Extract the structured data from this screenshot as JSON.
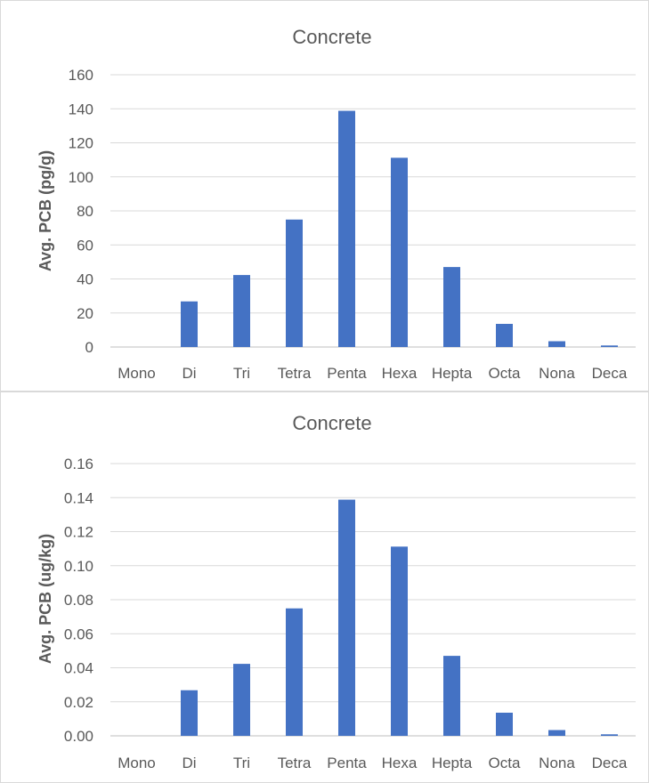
{
  "chart_data": [
    {
      "type": "bar",
      "title": "Concrete",
      "ylabel": "Avg. PCB (pg/g)",
      "xlabel": "",
      "categories": [
        "Mono",
        "Di",
        "Tri",
        "Tetra",
        "Penta",
        "Hexa",
        "Hepta",
        "Octa",
        "Nona",
        "Deca"
      ],
      "values": [
        0,
        26.8,
        42.3,
        74.9,
        138.8,
        111.2,
        47.0,
        13.6,
        3.4,
        0.9
      ],
      "ylim": [
        0,
        160
      ],
      "yticks": [
        "0",
        "20",
        "40",
        "60",
        "80",
        "100",
        "120",
        "140",
        "160"
      ],
      "ytick_values": [
        0,
        20,
        40,
        60,
        80,
        100,
        120,
        140,
        160
      ],
      "grid": true,
      "legend": "none",
      "bar_color": "#4472c4"
    },
    {
      "type": "bar",
      "title": "Concrete",
      "ylabel": "Avg. PCB (ug/kg)",
      "xlabel": "",
      "categories": [
        "Mono",
        "Di",
        "Tri",
        "Tetra",
        "Penta",
        "Hexa",
        "Hepta",
        "Octa",
        "Nona",
        "Deca"
      ],
      "values": [
        0,
        0.0268,
        0.0423,
        0.0749,
        0.1388,
        0.1112,
        0.047,
        0.0136,
        0.0034,
        0.0009
      ],
      "ylim": [
        0,
        0.16
      ],
      "yticks": [
        "0.00",
        "0.02",
        "0.04",
        "0.06",
        "0.08",
        "0.10",
        "0.12",
        "0.14",
        "0.16"
      ],
      "ytick_values": [
        0,
        0.02,
        0.04,
        0.06,
        0.08,
        0.1,
        0.12,
        0.14,
        0.16
      ],
      "grid": true,
      "legend": "none",
      "bar_color": "#4472c4"
    }
  ]
}
